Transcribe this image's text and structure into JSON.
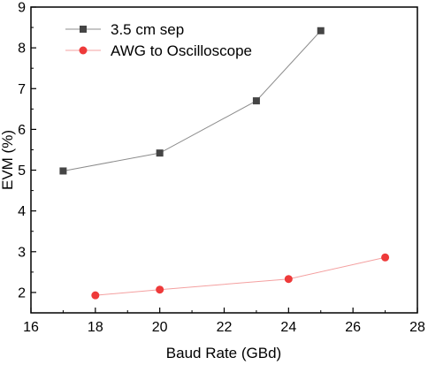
{
  "chart_data": {
    "type": "line",
    "title": "",
    "xlabel": "Baud Rate (GBd)",
    "ylabel": "EVM (%)",
    "xlim": [
      16,
      28
    ],
    "ylim": [
      1.5,
      9
    ],
    "x_ticks": [
      16,
      18,
      20,
      22,
      24,
      26,
      28
    ],
    "y_ticks": [
      2,
      3,
      4,
      5,
      6,
      7,
      8,
      9
    ],
    "grid": false,
    "legend_position": "top-left",
    "series": [
      {
        "name": "3.5 cm sep",
        "marker": "square",
        "marker_color": "#454545",
        "line_color": "#8c8c8c",
        "x": [
          17,
          20,
          23,
          25
        ],
        "y": [
          4.98,
          5.42,
          6.7,
          8.42
        ]
      },
      {
        "name": "AWG to Oscilloscope",
        "marker": "circle",
        "marker_color": "#ee3a3a",
        "line_color": "#f4a0a0",
        "x": [
          18,
          20,
          24,
          27
        ],
        "y": [
          1.93,
          2.07,
          2.33,
          2.86
        ]
      }
    ]
  }
}
